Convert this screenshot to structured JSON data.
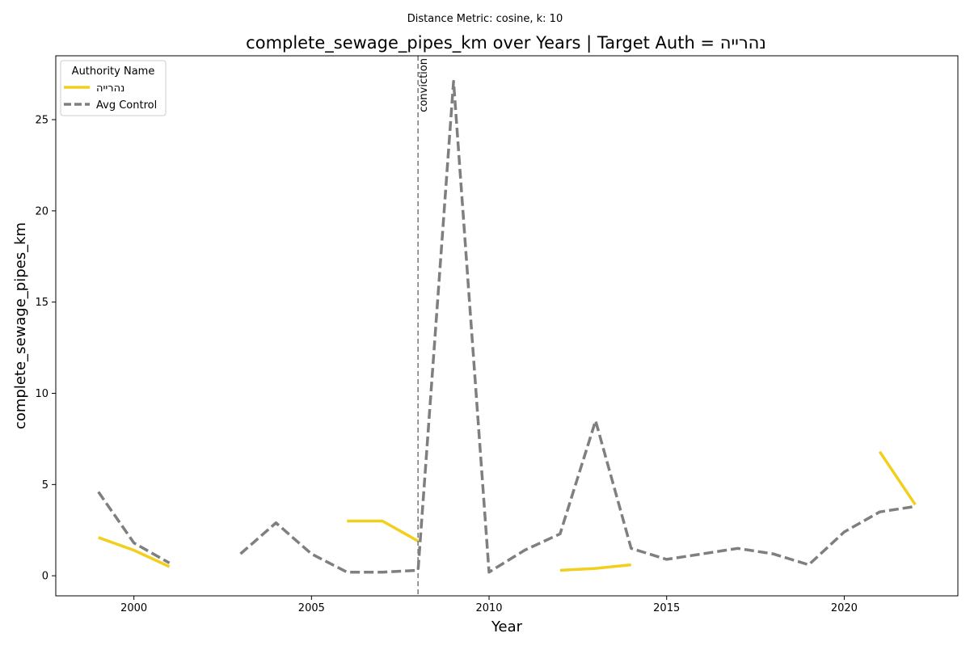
{
  "figure": {
    "suptitle": "Distance Metric: cosine, k: 10"
  },
  "chart_data": {
    "type": "line",
    "title": "complete_sewage_pipes_km over Years | Target Auth = נהרייה",
    "xlabel": "Year",
    "ylabel": "complete_sewage_pipes_km",
    "xlim": [
      1997.8,
      2023.2
    ],
    "ylim": [
      -1.1,
      28.5
    ],
    "xticks": [
      2000,
      2005,
      2010,
      2015,
      2020
    ],
    "yticks": [
      0,
      5,
      10,
      15,
      20,
      25
    ],
    "grid": false,
    "legend": {
      "title": "Authority Name",
      "placement": "top-left"
    },
    "annotation": {
      "x": 2008,
      "text": "conviction",
      "style": "dashed vertical line",
      "color": "#7f7f7f"
    },
    "series": [
      {
        "name": "נהרייה",
        "color": "#f2cf1c",
        "style": "solid",
        "points": [
          [
            1999,
            2.1
          ],
          [
            2000,
            1.4
          ],
          [
            2001,
            0.5
          ],
          [
            2002,
            null
          ],
          [
            2003,
            null
          ],
          [
            2004,
            null
          ],
          [
            2005,
            null
          ],
          [
            2006,
            3.0
          ],
          [
            2007,
            3.0
          ],
          [
            2008,
            1.9
          ],
          [
            2009,
            null
          ],
          [
            2010,
            null
          ],
          [
            2011,
            null
          ],
          [
            2012,
            0.3
          ],
          [
            2013,
            0.4
          ],
          [
            2014,
            0.6
          ],
          [
            2015,
            null
          ],
          [
            2016,
            null
          ],
          [
            2017,
            null
          ],
          [
            2018,
            null
          ],
          [
            2019,
            null
          ],
          [
            2020,
            null
          ],
          [
            2021,
            6.8
          ],
          [
            2022,
            3.9
          ]
        ]
      },
      {
        "name": "Avg Control",
        "color": "#7f7f7f",
        "style": "dashed",
        "points": [
          [
            1999,
            4.6
          ],
          [
            2000,
            1.8
          ],
          [
            2001,
            0.7
          ],
          [
            2002,
            null
          ],
          [
            2003,
            1.2
          ],
          [
            2004,
            2.9
          ],
          [
            2005,
            1.2
          ],
          [
            2006,
            0.2
          ],
          [
            2007,
            0.2
          ],
          [
            2008,
            0.3
          ],
          [
            2009,
            27.1
          ],
          [
            2010,
            0.2
          ],
          [
            2011,
            1.4
          ],
          [
            2012,
            2.3
          ],
          [
            2013,
            8.5
          ],
          [
            2014,
            1.5
          ],
          [
            2015,
            0.9
          ],
          [
            2016,
            1.2
          ],
          [
            2017,
            1.5
          ],
          [
            2018,
            1.2
          ],
          [
            2019,
            0.6
          ],
          [
            2020,
            2.4
          ],
          [
            2021,
            3.5
          ],
          [
            2022,
            3.8
          ]
        ]
      }
    ]
  }
}
